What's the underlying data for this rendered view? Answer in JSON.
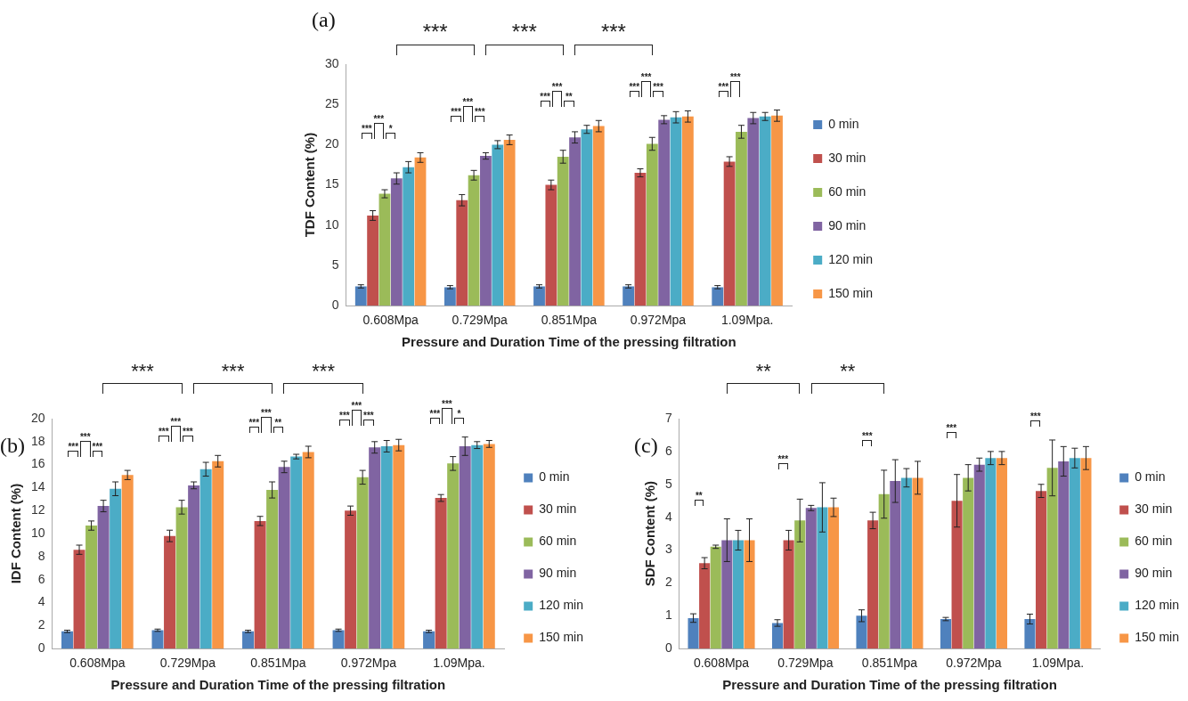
{
  "chart_data": [
    {
      "type": "bar",
      "title": "(a)",
      "xlabel": "Pressure and Duration Time of the pressing filtration",
      "ylabel": "TDF Content (%)",
      "categories": [
        "0.608Mpa",
        "0.729Mpa",
        "0.851Mpa",
        "0.972Mpa",
        "1.09Mpa."
      ],
      "ylim": [
        0,
        30
      ],
      "yticks": [
        0,
        5,
        10,
        15,
        20,
        25,
        30
      ],
      "legend": "right",
      "series": [
        {
          "name": "0 min",
          "color": "#4f81bd",
          "values": [
            2.4,
            2.3,
            2.4,
            2.4,
            2.3
          ],
          "errors": [
            0.2,
            0.2,
            0.2,
            0.2,
            0.2
          ]
        },
        {
          "name": "30 min",
          "color": "#c0504d",
          "values": [
            11.2,
            13.1,
            15.0,
            16.5,
            17.9
          ],
          "errors": [
            0.6,
            0.7,
            0.6,
            0.5,
            0.6
          ]
        },
        {
          "name": "60 min",
          "color": "#9bbb59",
          "values": [
            13.9,
            16.2,
            18.5,
            20.1,
            21.6
          ],
          "errors": [
            0.5,
            0.6,
            0.8,
            0.8,
            0.8
          ]
        },
        {
          "name": "90 min",
          "color": "#8064a2",
          "values": [
            15.8,
            18.6,
            20.9,
            23.1,
            23.3
          ],
          "errors": [
            0.7,
            0.4,
            0.7,
            0.5,
            0.7
          ]
        },
        {
          "name": "120 min",
          "color": "#4bacc6",
          "values": [
            17.2,
            20.0,
            21.9,
            23.4,
            23.5
          ],
          "errors": [
            0.7,
            0.5,
            0.5,
            0.7,
            0.5
          ]
        },
        {
          "name": "150 min",
          "color": "#f79646",
          "values": [
            18.4,
            20.6,
            22.3,
            23.5,
            23.6
          ],
          "errors": [
            0.6,
            0.6,
            0.7,
            0.7,
            0.7
          ]
        }
      ],
      "annotations": [
        "***",
        "***",
        "***",
        "***",
        "***",
        "*",
        "***",
        "***",
        "***",
        "***",
        "***",
        "**",
        "***",
        "***",
        "***",
        "***",
        "***"
      ]
    },
    {
      "type": "bar",
      "title": "(b)",
      "xlabel": "Pressure and Duration Time of the pressing filtration",
      "ylabel": "IDF Content (%)",
      "categories": [
        "0.608Mpa",
        "0.729Mpa",
        "0.851Mpa",
        "0.972Mpa",
        "1.09Mpa."
      ],
      "ylim": [
        0,
        20
      ],
      "yticks": [
        0,
        2,
        4,
        6,
        8,
        10,
        12,
        14,
        16,
        18,
        20
      ],
      "legend": "right",
      "series": [
        {
          "name": "0 min",
          "color": "#4f81bd",
          "values": [
            1.5,
            1.6,
            1.5,
            1.6,
            1.5
          ],
          "errors": [
            0.1,
            0.1,
            0.1,
            0.1,
            0.1
          ]
        },
        {
          "name": "30 min",
          "color": "#c0504d",
          "values": [
            8.6,
            9.8,
            11.1,
            12.0,
            13.1
          ],
          "errors": [
            0.4,
            0.5,
            0.4,
            0.4,
            0.3
          ]
        },
        {
          "name": "60 min",
          "color": "#9bbb59",
          "values": [
            10.7,
            12.3,
            13.8,
            14.9,
            16.1
          ],
          "errors": [
            0.4,
            0.6,
            0.7,
            0.6,
            0.6
          ]
        },
        {
          "name": "90 min",
          "color": "#8064a2",
          "values": [
            12.4,
            14.2,
            15.8,
            17.5,
            17.6
          ],
          "errors": [
            0.5,
            0.3,
            0.5,
            0.5,
            0.8
          ]
        },
        {
          "name": "120 min",
          "color": "#4bacc6",
          "values": [
            13.9,
            15.6,
            16.7,
            17.6,
            17.7
          ],
          "errors": [
            0.6,
            0.6,
            0.2,
            0.5,
            0.3
          ]
        },
        {
          "name": "150 min",
          "color": "#f79646",
          "values": [
            15.1,
            16.3,
            17.1,
            17.7,
            17.8
          ],
          "errors": [
            0.4,
            0.5,
            0.5,
            0.5,
            0.3
          ]
        }
      ],
      "annotations": [
        "***",
        "***",
        "***",
        "***",
        "***",
        "***",
        "***",
        "***",
        "***",
        "***",
        "***",
        "**",
        "***",
        "***",
        "***",
        "***",
        "***",
        "*"
      ]
    },
    {
      "type": "bar",
      "title": "(c)",
      "xlabel": "Pressure and Duration Time of the pressing filtration",
      "ylabel": "SDF Content (%)",
      "categories": [
        "0.608Mpa",
        "0.729Mpa",
        "0.851Mpa",
        "0.972Mpa",
        "1.09Mpa."
      ],
      "ylim": [
        0,
        7
      ],
      "yticks": [
        0,
        1,
        2,
        3,
        4,
        5,
        6,
        7
      ],
      "legend": "right",
      "series": [
        {
          "name": "0 min",
          "color": "#4f81bd",
          "values": [
            0.93,
            0.78,
            1.0,
            0.9,
            0.9
          ],
          "errors": [
            0.13,
            0.1,
            0.18,
            0.05,
            0.15
          ]
        },
        {
          "name": "30 min",
          "color": "#c0504d",
          "values": [
            2.6,
            3.3,
            3.9,
            4.5,
            4.8
          ],
          "errors": [
            0.17,
            0.3,
            0.25,
            0.8,
            0.2
          ]
        },
        {
          "name": "60 min",
          "color": "#9bbb59",
          "values": [
            3.1,
            3.9,
            4.7,
            5.2,
            5.5
          ],
          "errors": [
            0.05,
            0.65,
            0.73,
            0.4,
            0.85
          ]
        },
        {
          "name": "90 min",
          "color": "#8064a2",
          "values": [
            3.3,
            4.28,
            5.1,
            5.6,
            5.7
          ],
          "errors": [
            0.65,
            0.08,
            0.65,
            0.2,
            0.45
          ]
        },
        {
          "name": "120 min",
          "color": "#4bacc6",
          "values": [
            3.3,
            4.3,
            5.2,
            5.8,
            5.8
          ],
          "errors": [
            0.3,
            0.75,
            0.28,
            0.2,
            0.3
          ]
        },
        {
          "name": "150 min",
          "color": "#f79646",
          "values": [
            3.3,
            4.3,
            5.2,
            5.8,
            5.8
          ],
          "errors": [
            0.65,
            0.28,
            0.5,
            0.2,
            0.35
          ]
        }
      ],
      "annotations": [
        "**",
        "**",
        "**",
        "***",
        "***",
        "***",
        "***"
      ]
    }
  ]
}
